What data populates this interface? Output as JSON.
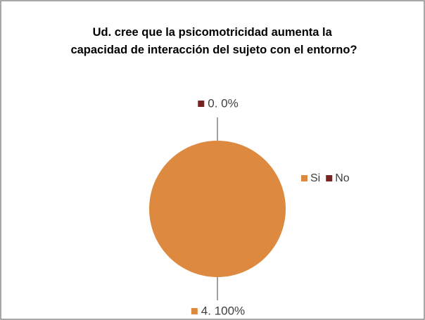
{
  "chart_data": {
    "type": "pie",
    "title": [
      "Ud. cree que la psicomotricidad aumenta la",
      "capacidad de interacción del sujeto con el entorno?"
    ],
    "categories": [
      "Si",
      "No"
    ],
    "values": [
      4,
      0
    ],
    "value_labels": [
      "4. 100%",
      "0. 0%"
    ],
    "colors": [
      "#dd8a40",
      "#7a2323"
    ],
    "legend": "right"
  }
}
